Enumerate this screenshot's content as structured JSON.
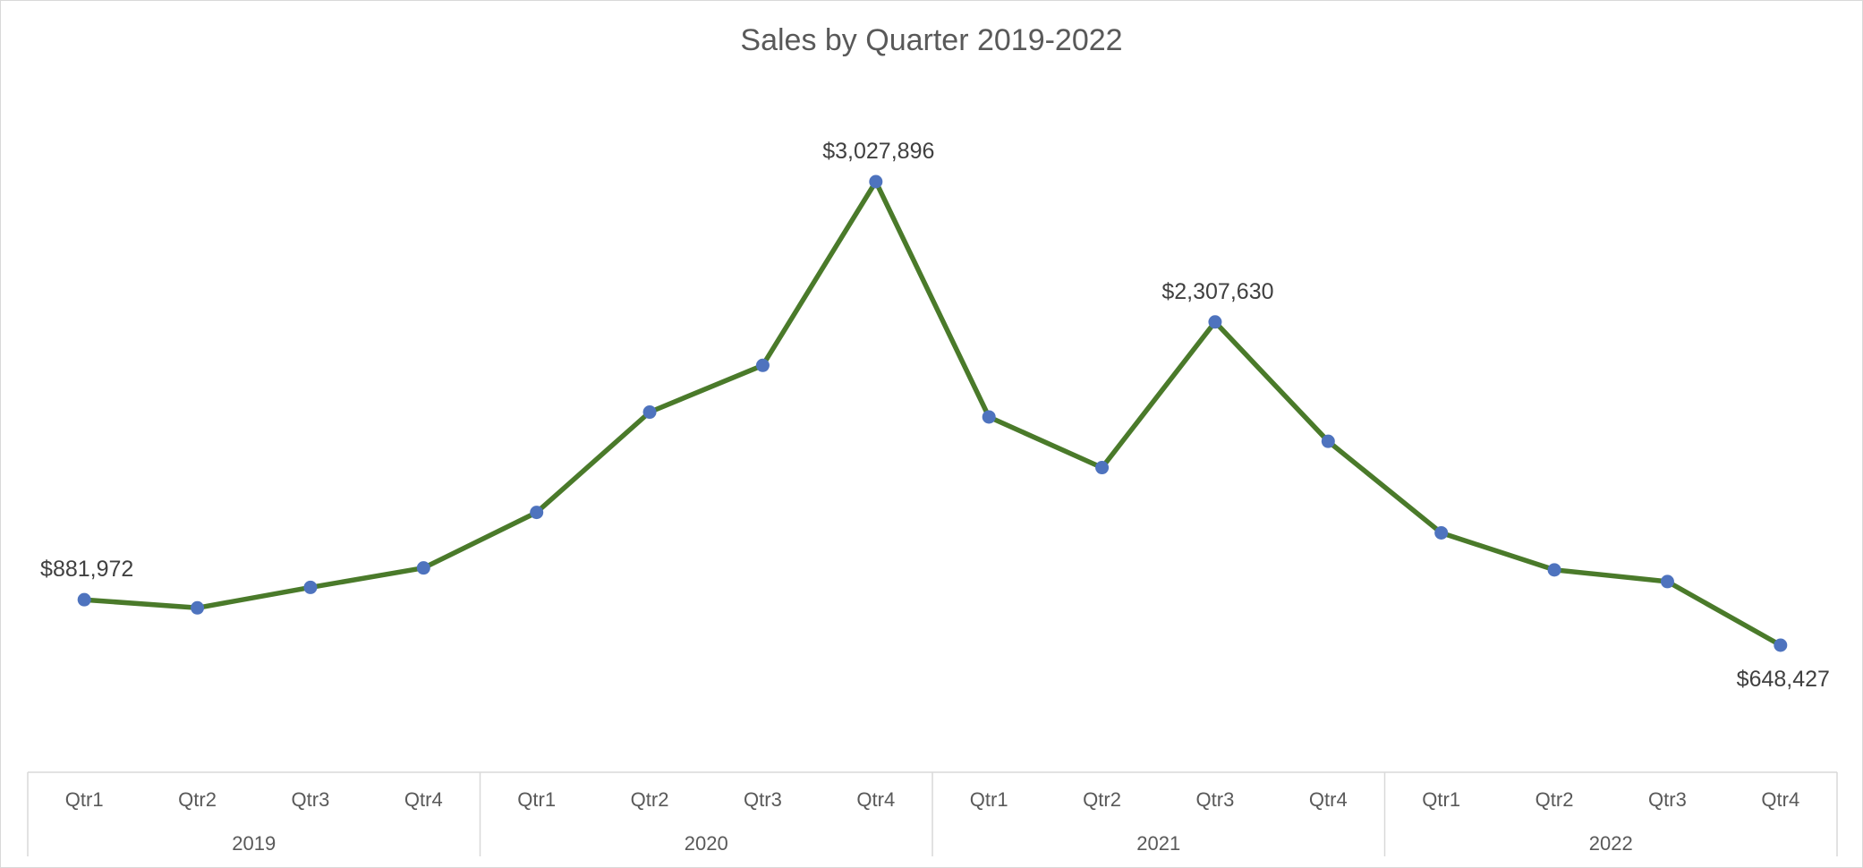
{
  "chart_data": {
    "type": "line",
    "title": "Sales by Quarter 2019-2022",
    "xlabel": "",
    "ylabel": "",
    "grid": false,
    "legend": "none",
    "line_color": "#4A7A2A",
    "marker_color": "#4E73BE",
    "categories": [
      "Qtr1",
      "Qtr2",
      "Qtr3",
      "Qtr4",
      "Qtr1",
      "Qtr2",
      "Qtr3",
      "Qtr4",
      "Qtr1",
      "Qtr2",
      "Qtr3",
      "Qtr4",
      "Qtr1",
      "Qtr2",
      "Qtr3",
      "Qtr4"
    ],
    "groups": [
      {
        "label": "2019",
        "count": 4
      },
      {
        "label": "2020",
        "count": 4
      },
      {
        "label": "2021",
        "count": 4
      },
      {
        "label": "2022",
        "count": 4
      }
    ],
    "series": [
      {
        "values": [
          881972,
          840000,
          945000,
          1045000,
          1330000,
          1845000,
          2085000,
          3027896,
          1820000,
          1560000,
          2307630,
          1695000,
          1225000,
          1035000,
          975000,
          648427
        ]
      }
    ],
    "data_labels": [
      {
        "index": 0,
        "text": "$881,972",
        "position": "above"
      },
      {
        "index": 7,
        "text": "$3,027,896",
        "position": "above"
      },
      {
        "index": 10,
        "text": "$2,307,630",
        "position": "above"
      },
      {
        "index": 15,
        "text": "$648,427",
        "position": "below"
      }
    ]
  }
}
